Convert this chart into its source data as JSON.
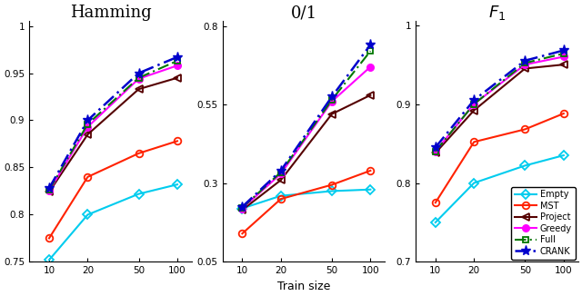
{
  "x": [
    10,
    20,
    50,
    100
  ],
  "hamming": {
    "Empty": [
      0.752,
      0.8,
      0.822,
      0.832
    ],
    "MST": [
      0.775,
      0.84,
      0.865,
      0.878
    ],
    "Project": [
      0.824,
      0.885,
      0.933,
      0.945
    ],
    "Greedy": [
      0.825,
      0.893,
      0.944,
      0.958
    ],
    "Full": [
      0.826,
      0.896,
      0.945,
      0.963
    ],
    "CRANK": [
      0.828,
      0.9,
      0.95,
      0.967
    ]
  },
  "zero_one": {
    "Empty": [
      0.22,
      0.26,
      0.275,
      0.28
    ],
    "MST": [
      0.14,
      0.25,
      0.295,
      0.34
    ],
    "Project": [
      0.215,
      0.31,
      0.52,
      0.58
    ],
    "Greedy": [
      0.22,
      0.33,
      0.56,
      0.67
    ],
    "Full": [
      0.222,
      0.335,
      0.565,
      0.72
    ],
    "CRANK": [
      0.225,
      0.34,
      0.575,
      0.74
    ]
  },
  "f1": {
    "Empty": [
      0.75,
      0.8,
      0.822,
      0.835
    ],
    "MST": [
      0.775,
      0.852,
      0.868,
      0.888
    ],
    "Project": [
      0.838,
      0.892,
      0.945,
      0.95
    ],
    "Greedy": [
      0.84,
      0.9,
      0.95,
      0.96
    ],
    "Full": [
      0.84,
      0.9,
      0.952,
      0.964
    ],
    "CRANK": [
      0.845,
      0.905,
      0.955,
      0.968
    ]
  },
  "ylim_hamming": [
    0.75,
    1.005
  ],
  "yticks_hamming": [
    0.75,
    0.8,
    0.85,
    0.9,
    0.95,
    1.0
  ],
  "ylim_zero_one": [
    0.05,
    0.815
  ],
  "yticks_zero_one": [
    0.05,
    0.3,
    0.55,
    0.8
  ],
  "ylim_f1": [
    0.7,
    1.005
  ],
  "yticks_f1": [
    0.7,
    0.8,
    0.9,
    1.0
  ],
  "legend_order": [
    "Empty",
    "MST",
    "Project",
    "Greedy",
    "Full",
    "CRANK"
  ],
  "colors": {
    "Empty": "#00CCEE",
    "MST": "#FF2200",
    "Project": "#550000",
    "Greedy": "#FF00FF",
    "Full": "#007700",
    "CRANK": "#0000CC"
  }
}
